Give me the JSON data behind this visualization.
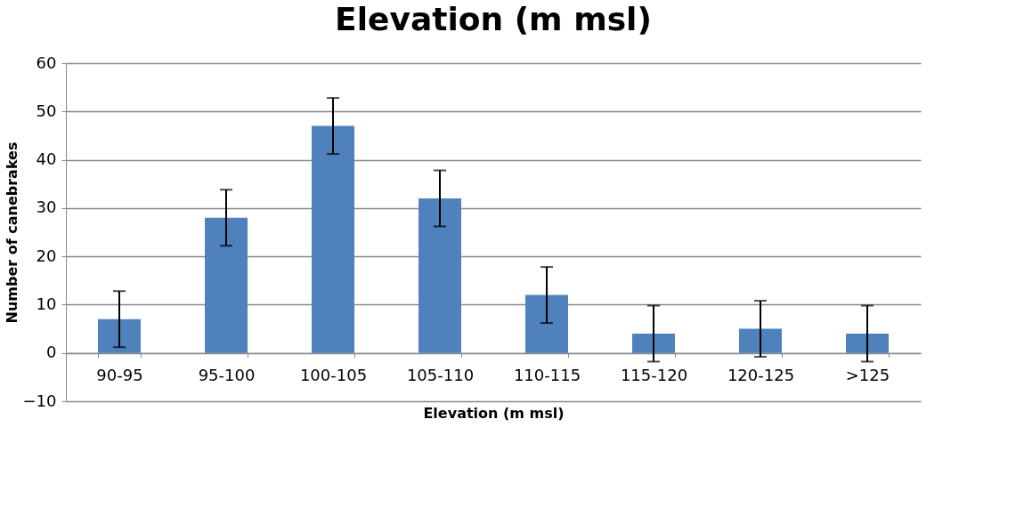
{
  "chart_data": {
    "type": "bar",
    "title": "Elevation (m msl)",
    "xlabel": "Elevation (m msl)",
    "ylabel": "Number of canebrakes",
    "categories": [
      "90-95",
      "95-100",
      "100-105",
      "105-110",
      "110-115",
      "115-120",
      "120-125",
      ">125"
    ],
    "values": [
      7,
      28,
      47,
      32,
      12,
      4,
      5,
      4
    ],
    "errors": [
      5.8,
      5.8,
      5.8,
      5.8,
      5.8,
      5.8,
      5.8,
      5.8
    ],
    "color": "#4f81bd",
    "ylim": [
      -10,
      60
    ],
    "yticks": [
      -10,
      0,
      10,
      20,
      30,
      40,
      50,
      60
    ],
    "grid": "y"
  }
}
